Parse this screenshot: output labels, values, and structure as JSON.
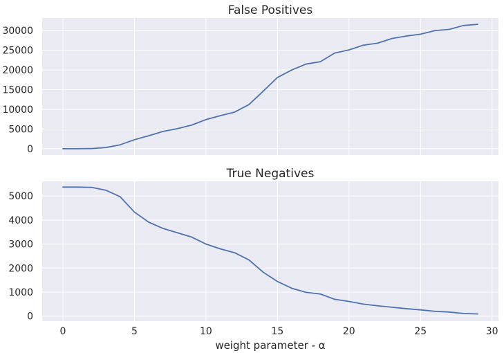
{
  "chart_data": [
    {
      "type": "line",
      "title": "False Positives",
      "xlabel": "",
      "ylabel": "",
      "xlim": [
        -1.45,
        30.45
      ],
      "ylim": [
        -1600,
        33200
      ],
      "x_ticks": [
        0,
        5,
        10,
        15,
        20,
        25,
        30
      ],
      "x_tick_labels_visible": false,
      "y_ticks": [
        0,
        5000,
        10000,
        15000,
        20000,
        25000,
        30000
      ],
      "y_tick_labels": [
        "0",
        "5000",
        "10000",
        "15000",
        "20000",
        "25000",
        "30000"
      ],
      "grid": true,
      "color": "#4c72b0",
      "series": [
        {
          "x": [
            0,
            1,
            2,
            3,
            4,
            5,
            6,
            7,
            8,
            9,
            10,
            11,
            12,
            13,
            14,
            15,
            16,
            17,
            18,
            19,
            20,
            21,
            22,
            23,
            24,
            25,
            26,
            27,
            28,
            29
          ],
          "values": [
            0,
            10,
            50,
            300,
            1000,
            2300,
            3300,
            4400,
            5100,
            6000,
            7400,
            8400,
            9300,
            11200,
            14600,
            18100,
            20000,
            21500,
            22100,
            24300,
            25100,
            26300,
            26800,
            28000,
            28600,
            29100,
            30000,
            30300,
            31300,
            31600
          ]
        }
      ]
    },
    {
      "type": "line",
      "title": "True Negatives",
      "xlabel": "weight parameter - α",
      "ylabel": "",
      "xlim": [
        -1.45,
        30.45
      ],
      "ylim": [
        -210,
        5610
      ],
      "x_ticks": [
        0,
        5,
        10,
        15,
        20,
        25,
        30
      ],
      "x_tick_labels": [
        "0",
        "5",
        "10",
        "15",
        "20",
        "25",
        "30"
      ],
      "y_ticks": [
        0,
        1000,
        2000,
        3000,
        4000,
        5000
      ],
      "y_tick_labels": [
        "0",
        "1000",
        "2000",
        "3000",
        "4000",
        "5000"
      ],
      "grid": true,
      "color": "#4c72b0",
      "series": [
        {
          "x": [
            0,
            1,
            2,
            3,
            4,
            5,
            6,
            7,
            8,
            9,
            10,
            11,
            12,
            13,
            14,
            15,
            16,
            17,
            18,
            19,
            20,
            21,
            22,
            23,
            24,
            25,
            26,
            27,
            28,
            29
          ],
          "values": [
            5370,
            5370,
            5360,
            5240,
            4970,
            4330,
            3910,
            3650,
            3470,
            3290,
            3000,
            2800,
            2640,
            2340,
            1830,
            1440,
            1160,
            990,
            920,
            700,
            610,
            500,
            430,
            370,
            310,
            260,
            200,
            170,
            110,
            90
          ]
        }
      ]
    }
  ]
}
